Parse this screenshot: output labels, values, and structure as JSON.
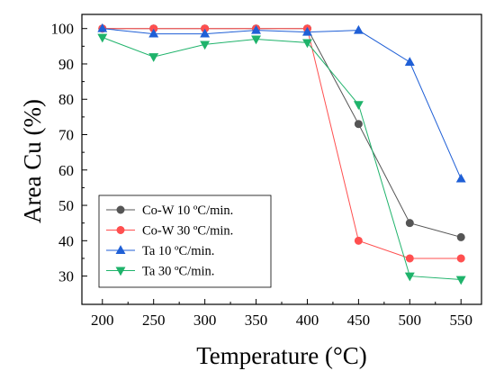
{
  "chart_data": {
    "type": "line",
    "xlabel": "Temperature (°C)",
    "ylabel": "Area Cu (%)",
    "x": [
      200,
      250,
      300,
      350,
      400,
      450,
      500,
      550
    ],
    "xlim": [
      180,
      570
    ],
    "ylim": [
      22,
      104
    ],
    "xticks": [
      200,
      250,
      300,
      350,
      400,
      450,
      500,
      550
    ],
    "yticks": [
      30,
      40,
      50,
      60,
      70,
      80,
      90,
      100
    ],
    "grid": false,
    "legend_position": "bottom-left",
    "series": [
      {
        "name": "Co-W 10 ºC/min.",
        "color": "#555555",
        "marker": "circle",
        "values": [
          100,
          100,
          100,
          100,
          100,
          73,
          45,
          41
        ]
      },
      {
        "name": "Co-W 30 ºC/min.",
        "color": "#ff4f4f",
        "marker": "circle",
        "values": [
          100,
          100,
          100,
          100,
          100,
          40,
          35,
          35
        ]
      },
      {
        "name": "Ta 10 ºC/min.",
        "color": "#1f5fd6",
        "marker": "triangle-up",
        "values": [
          100,
          98.5,
          98.5,
          99.5,
          99,
          99.5,
          90.5,
          57.5
        ]
      },
      {
        "name": "Ta 30 ºC/min.",
        "color": "#1fb36b",
        "marker": "triangle-down",
        "values": [
          97.5,
          92,
          95.5,
          97,
          96,
          78.5,
          30,
          29
        ]
      }
    ]
  }
}
